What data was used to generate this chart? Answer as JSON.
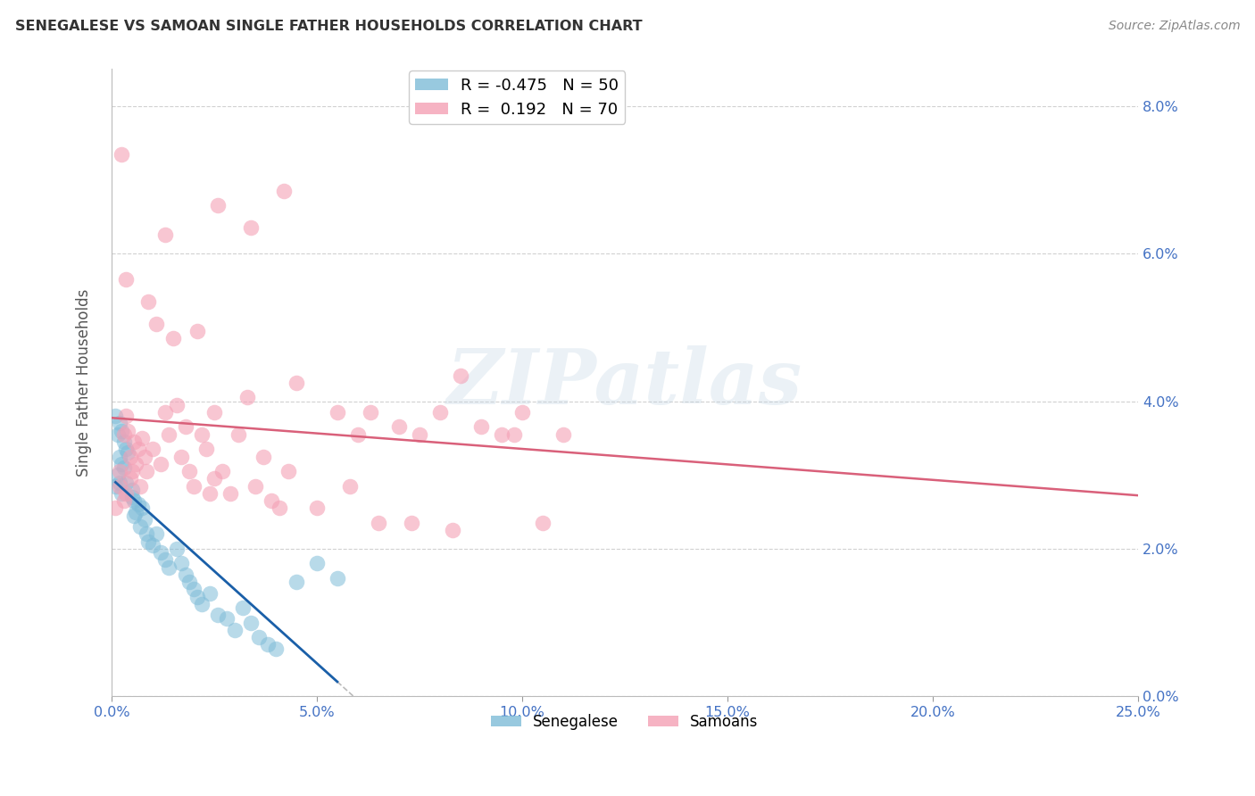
{
  "title": "SENEGALESE VS SAMOAN SINGLE FATHER HOUSEHOLDS CORRELATION CHART",
  "source": "Source: ZipAtlas.com",
  "ylabel_label": "Single Father Households",
  "xlim": [
    0.0,
    25.0
  ],
  "ylim": [
    0.0,
    8.5
  ],
  "xlabel_vals": [
    0.0,
    5.0,
    10.0,
    15.0,
    20.0,
    25.0
  ],
  "ylabel_vals": [
    0.0,
    2.0,
    4.0,
    6.0,
    8.0
  ],
  "watermark": "ZIPatlas",
  "senegalese_color": "#7FBCD8",
  "samoan_color": "#F4A0B5",
  "senegalese_line_color": "#1A5FA8",
  "samoan_line_color": "#D9607A",
  "dashed_line_color": "#bbbbbb",
  "legend_label1": "R = -0.475",
  "legend_label2": "R =  0.192",
  "legend_n1": "N = 50",
  "legend_n2": "N = 70",
  "senegalese_points": [
    [
      0.1,
      3.8
    ],
    [
      0.2,
      3.7
    ],
    [
      0.15,
      3.55
    ],
    [
      0.25,
      3.6
    ],
    [
      0.3,
      3.45
    ],
    [
      0.2,
      3.25
    ],
    [
      0.25,
      3.15
    ],
    [
      0.35,
      3.35
    ],
    [
      0.4,
      3.3
    ],
    [
      0.3,
      3.1
    ],
    [
      0.15,
      3.0
    ],
    [
      0.2,
      2.9
    ],
    [
      0.1,
      2.85
    ],
    [
      0.25,
      2.75
    ],
    [
      0.35,
      2.9
    ],
    [
      0.5,
      2.8
    ],
    [
      0.55,
      2.65
    ],
    [
      0.5,
      2.7
    ],
    [
      0.6,
      2.5
    ],
    [
      0.65,
      2.6
    ],
    [
      0.55,
      2.45
    ],
    [
      0.7,
      2.3
    ],
    [
      0.75,
      2.55
    ],
    [
      0.8,
      2.4
    ],
    [
      0.85,
      2.2
    ],
    [
      0.9,
      2.1
    ],
    [
      1.0,
      2.05
    ],
    [
      1.1,
      2.2
    ],
    [
      1.2,
      1.95
    ],
    [
      1.3,
      1.85
    ],
    [
      1.4,
      1.75
    ],
    [
      1.6,
      2.0
    ],
    [
      1.7,
      1.8
    ],
    [
      1.8,
      1.65
    ],
    [
      1.9,
      1.55
    ],
    [
      2.0,
      1.45
    ],
    [
      2.1,
      1.35
    ],
    [
      2.2,
      1.25
    ],
    [
      2.4,
      1.4
    ],
    [
      2.6,
      1.1
    ],
    [
      2.8,
      1.05
    ],
    [
      3.0,
      0.9
    ],
    [
      3.2,
      1.2
    ],
    [
      3.4,
      1.0
    ],
    [
      3.6,
      0.8
    ],
    [
      3.8,
      0.7
    ],
    [
      4.0,
      0.65
    ],
    [
      4.5,
      1.55
    ],
    [
      5.0,
      1.8
    ],
    [
      5.5,
      1.6
    ]
  ],
  "samoan_points": [
    [
      0.1,
      2.55
    ],
    [
      0.2,
      3.05
    ],
    [
      0.2,
      2.85
    ],
    [
      0.25,
      7.35
    ],
    [
      0.3,
      2.65
    ],
    [
      0.3,
      3.55
    ],
    [
      0.35,
      2.75
    ],
    [
      0.35,
      3.8
    ],
    [
      0.4,
      3.6
    ],
    [
      0.45,
      2.95
    ],
    [
      0.45,
      3.25
    ],
    [
      0.5,
      3.05
    ],
    [
      0.55,
      3.45
    ],
    [
      0.6,
      3.15
    ],
    [
      0.65,
      3.35
    ],
    [
      0.7,
      2.85
    ],
    [
      0.75,
      3.5
    ],
    [
      0.8,
      3.25
    ],
    [
      0.85,
      3.05
    ],
    [
      0.9,
      5.35
    ],
    [
      1.0,
      3.35
    ],
    [
      1.1,
      5.05
    ],
    [
      1.2,
      3.15
    ],
    [
      1.3,
      3.85
    ],
    [
      1.4,
      3.55
    ],
    [
      1.5,
      4.85
    ],
    [
      1.6,
      3.95
    ],
    [
      1.7,
      3.25
    ],
    [
      1.8,
      3.65
    ],
    [
      1.9,
      3.05
    ],
    [
      2.0,
      2.85
    ],
    [
      2.1,
      4.95
    ],
    [
      2.2,
      3.55
    ],
    [
      2.3,
      3.35
    ],
    [
      2.4,
      2.75
    ],
    [
      2.5,
      3.85
    ],
    [
      2.5,
      2.95
    ],
    [
      2.7,
      3.05
    ],
    [
      2.9,
      2.75
    ],
    [
      3.1,
      3.55
    ],
    [
      3.3,
      4.05
    ],
    [
      3.5,
      2.85
    ],
    [
      3.7,
      3.25
    ],
    [
      3.9,
      2.65
    ],
    [
      4.1,
      2.55
    ],
    [
      4.3,
      3.05
    ],
    [
      4.5,
      4.25
    ],
    [
      5.0,
      2.55
    ],
    [
      5.5,
      3.85
    ],
    [
      6.0,
      3.55
    ],
    [
      6.5,
      2.35
    ],
    [
      7.0,
      3.65
    ],
    [
      7.5,
      3.55
    ],
    [
      8.0,
      3.85
    ],
    [
      8.5,
      4.35
    ],
    [
      9.0,
      3.65
    ],
    [
      9.5,
      3.55
    ],
    [
      10.0,
      3.85
    ],
    [
      4.2,
      6.85
    ],
    [
      3.4,
      6.35
    ],
    [
      2.6,
      6.65
    ],
    [
      1.3,
      6.25
    ],
    [
      0.35,
      5.65
    ],
    [
      10.5,
      2.35
    ],
    [
      11.0,
      3.55
    ],
    [
      9.8,
      3.55
    ],
    [
      8.3,
      2.25
    ],
    [
      7.3,
      2.35
    ],
    [
      6.3,
      3.85
    ],
    [
      5.8,
      2.85
    ]
  ]
}
